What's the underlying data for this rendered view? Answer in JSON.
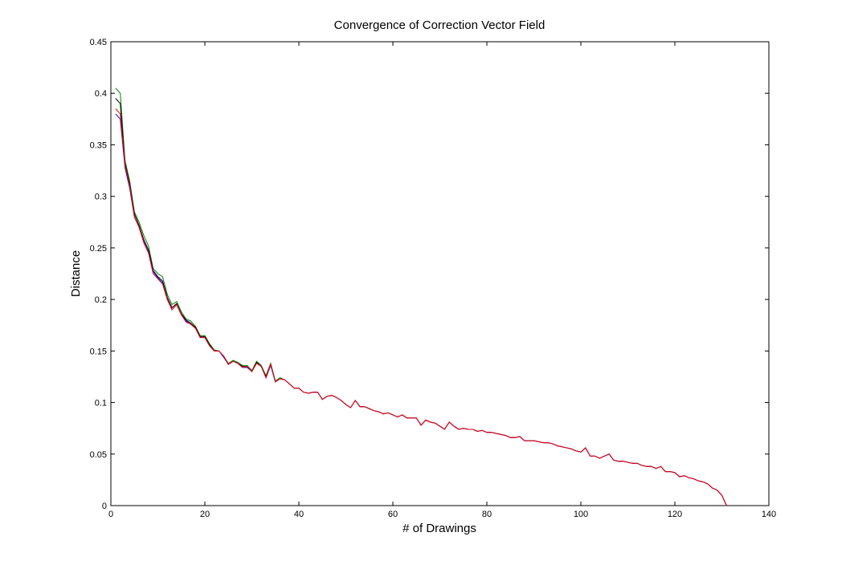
{
  "chart_data": {
    "type": "line",
    "title": "Convergence of Correction Vector Field",
    "xlabel": "# of Drawings",
    "ylabel": "Distance",
    "x": [
      1,
      2,
      3,
      4,
      5,
      6,
      7,
      8,
      9,
      10,
      11,
      12,
      13,
      14,
      15,
      16,
      17,
      18,
      19,
      20,
      21,
      22,
      23,
      24,
      25,
      26,
      27,
      28,
      29,
      30,
      31,
      32,
      33,
      34,
      35,
      36,
      37,
      38,
      39,
      40,
      41,
      42,
      43,
      44,
      45,
      46,
      47,
      48,
      49,
      50,
      51,
      52,
      53,
      54,
      55,
      56,
      57,
      58,
      59,
      60,
      61,
      62,
      63,
      64,
      65,
      66,
      67,
      68,
      69,
      70,
      71,
      72,
      73,
      74,
      75,
      76,
      77,
      78,
      79,
      80,
      81,
      82,
      83,
      84,
      85,
      86,
      87,
      88,
      89,
      90,
      91,
      92,
      93,
      94,
      95,
      96,
      97,
      98,
      99,
      100,
      101,
      102,
      103,
      104,
      105,
      106,
      107,
      108,
      109,
      110,
      111,
      112,
      113,
      114,
      115,
      116,
      117,
      118,
      119,
      120,
      121,
      122,
      123,
      124,
      125,
      126,
      127,
      128,
      129,
      130,
      131
    ],
    "series": [
      {
        "color": "#008000",
        "values": [
          0.405,
          0.4,
          0.335,
          0.315,
          0.285,
          0.275,
          0.262,
          0.252,
          0.23,
          0.225,
          0.222,
          0.205,
          0.195,
          0.198,
          0.188,
          0.181,
          0.179,
          0.174,
          0.165,
          0.165,
          0.157,
          0.151,
          0.15,
          0.145,
          0.138,
          0.141,
          0.139,
          0.136,
          0.136,
          0.131,
          0.14,
          0.136,
          0.126,
          0.138,
          0.121,
          0.124,
          0.122,
          0.118,
          0.114,
          0.114,
          0.11,
          0.109,
          0.11,
          0.11,
          0.103,
          0.106,
          0.107,
          0.105,
          0.102,
          0.098,
          0.095,
          0.102,
          0.096,
          0.096,
          0.094,
          0.092,
          0.091,
          0.089,
          0.09,
          0.088,
          0.086,
          0.088,
          0.085,
          0.085,
          0.085,
          0.078,
          0.083,
          0.081,
          0.08,
          0.077,
          0.074,
          0.081,
          0.077,
          0.074,
          0.075,
          0.074,
          0.074,
          0.072,
          0.073,
          0.071,
          0.071,
          0.07,
          0.069,
          0.068,
          0.066,
          0.066,
          0.067,
          0.063,
          0.063,
          0.063,
          0.062,
          0.061,
          0.061,
          0.06,
          0.058,
          0.057,
          0.056,
          0.055,
          0.053,
          0.052,
          0.056,
          0.048,
          0.048,
          0.046,
          0.048,
          0.05,
          0.044,
          0.043,
          0.043,
          0.042,
          0.041,
          0.041,
          0.039,
          0.038,
          0.038,
          0.036,
          0.038,
          0.033,
          0.033,
          0.032,
          0.028,
          0.029,
          0.027,
          0.026,
          0.024,
          0.023,
          0.021,
          0.017,
          0.015,
          0.01,
          0
        ]
      },
      {
        "color": "#000000",
        "values": [
          0.395,
          0.39,
          0.332,
          0.312,
          0.283,
          0.272,
          0.258,
          0.248,
          0.228,
          0.222,
          0.218,
          0.202,
          0.192,
          0.196,
          0.186,
          0.18,
          0.177,
          0.173,
          0.164,
          0.164,
          0.156,
          0.15,
          0.15,
          0.145,
          0.137,
          0.14,
          0.138,
          0.135,
          0.135,
          0.13,
          0.139,
          0.135,
          0.125,
          0.137,
          0.12,
          0.123,
          0.122,
          0.118,
          0.114,
          0.114,
          0.11,
          0.109,
          0.11,
          0.11,
          0.103,
          0.106,
          0.107,
          0.105,
          0.102,
          0.098,
          0.095,
          0.102,
          0.096,
          0.096,
          0.094,
          0.092,
          0.091,
          0.089,
          0.09,
          0.088,
          0.086,
          0.088,
          0.085,
          0.085,
          0.085,
          0.078,
          0.083,
          0.081,
          0.08,
          0.077,
          0.074,
          0.081,
          0.077,
          0.074,
          0.075,
          0.074,
          0.074,
          0.072,
          0.073,
          0.071,
          0.071,
          0.07,
          0.069,
          0.068,
          0.066,
          0.066,
          0.067,
          0.063,
          0.063,
          0.063,
          0.062,
          0.061,
          0.061,
          0.06,
          0.058,
          0.057,
          0.056,
          0.055,
          0.053,
          0.052,
          0.056,
          0.048,
          0.048,
          0.046,
          0.048,
          0.05,
          0.044,
          0.043,
          0.043,
          0.042,
          0.041,
          0.041,
          0.039,
          0.038,
          0.038,
          0.036,
          0.038,
          0.033,
          0.033,
          0.032,
          0.028,
          0.029,
          0.027,
          0.026,
          0.024,
          0.023,
          0.021,
          0.017,
          0.015,
          0.01,
          0
        ]
      },
      {
        "color": "#0000ff",
        "values": [
          0.38,
          0.375,
          0.328,
          0.308,
          0.28,
          0.27,
          0.256,
          0.246,
          0.227,
          0.221,
          0.216,
          0.2,
          0.19,
          0.195,
          0.185,
          0.179,
          0.176,
          0.172,
          0.163,
          0.163,
          0.155,
          0.15,
          0.15,
          0.144,
          0.137,
          0.14,
          0.138,
          0.134,
          0.134,
          0.13,
          0.138,
          0.135,
          0.124,
          0.136,
          0.12,
          0.123,
          0.122,
          0.118,
          0.114,
          0.114,
          0.11,
          0.109,
          0.11,
          0.11,
          0.103,
          0.106,
          0.107,
          0.105,
          0.102,
          0.098,
          0.095,
          0.102,
          0.096,
          0.096,
          0.094,
          0.092,
          0.091,
          0.089,
          0.09,
          0.088,
          0.086,
          0.088,
          0.085,
          0.085,
          0.085,
          0.078,
          0.083,
          0.081,
          0.08,
          0.077,
          0.074,
          0.081,
          0.077,
          0.074,
          0.075,
          0.074,
          0.074,
          0.072,
          0.073,
          0.071,
          0.071,
          0.07,
          0.069,
          0.068,
          0.066,
          0.066,
          0.067,
          0.063,
          0.063,
          0.063,
          0.062,
          0.061,
          0.061,
          0.06,
          0.058,
          0.057,
          0.056,
          0.055,
          0.053,
          0.052,
          0.056,
          0.048,
          0.048,
          0.046,
          0.048,
          0.05,
          0.044,
          0.043,
          0.043,
          0.042,
          0.041,
          0.041,
          0.039,
          0.038,
          0.038,
          0.036,
          0.038,
          0.033,
          0.033,
          0.032,
          0.028,
          0.029,
          0.027,
          0.026,
          0.024,
          0.023,
          0.021,
          0.017,
          0.015,
          0.01,
          0
        ]
      },
      {
        "color": "#ff0000",
        "values": [
          0.385,
          0.38,
          0.33,
          0.31,
          0.28,
          0.27,
          0.255,
          0.245,
          0.225,
          0.22,
          0.215,
          0.2,
          0.19,
          0.195,
          0.185,
          0.178,
          0.176,
          0.172,
          0.163,
          0.163,
          0.155,
          0.15,
          0.15,
          0.145,
          0.137,
          0.14,
          0.138,
          0.134,
          0.135,
          0.13,
          0.138,
          0.135,
          0.124,
          0.137,
          0.12,
          0.123,
          0.122,
          0.118,
          0.114,
          0.114,
          0.11,
          0.109,
          0.11,
          0.11,
          0.103,
          0.106,
          0.107,
          0.105,
          0.102,
          0.098,
          0.095,
          0.102,
          0.096,
          0.096,
          0.094,
          0.092,
          0.091,
          0.089,
          0.09,
          0.088,
          0.086,
          0.088,
          0.085,
          0.085,
          0.085,
          0.078,
          0.083,
          0.081,
          0.08,
          0.077,
          0.074,
          0.081,
          0.077,
          0.074,
          0.075,
          0.074,
          0.074,
          0.072,
          0.073,
          0.071,
          0.071,
          0.07,
          0.069,
          0.068,
          0.066,
          0.066,
          0.067,
          0.063,
          0.063,
          0.063,
          0.062,
          0.061,
          0.061,
          0.06,
          0.058,
          0.057,
          0.056,
          0.055,
          0.053,
          0.052,
          0.056,
          0.048,
          0.048,
          0.046,
          0.048,
          0.05,
          0.044,
          0.043,
          0.043,
          0.042,
          0.041,
          0.041,
          0.039,
          0.038,
          0.038,
          0.036,
          0.038,
          0.033,
          0.033,
          0.032,
          0.028,
          0.029,
          0.027,
          0.026,
          0.024,
          0.023,
          0.021,
          0.017,
          0.015,
          0.01,
          0
        ]
      }
    ],
    "xlim": [
      0,
      140
    ],
    "xticks": [
      0,
      20,
      40,
      60,
      80,
      100,
      120,
      140
    ],
    "ylim": [
      0,
      0.45
    ],
    "yticks": [
      0,
      0.05,
      0.1,
      0.15,
      0.2,
      0.25,
      0.3,
      0.35,
      0.4,
      0.45
    ],
    "grid": false
  }
}
